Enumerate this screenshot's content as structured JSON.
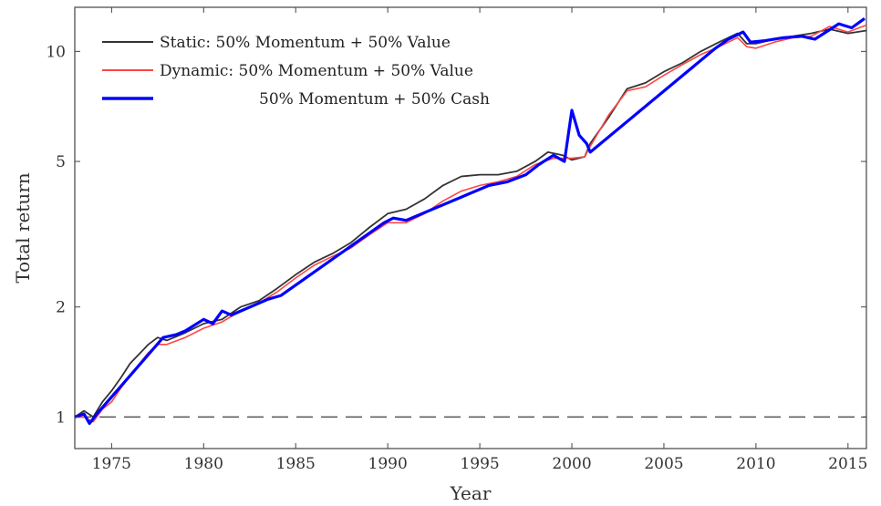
{
  "chart_data": {
    "type": "line",
    "xlabel": "Year",
    "ylabel": "Total return",
    "xlim": [
      1973,
      2016
    ],
    "ylim": [
      0.82,
      13.2
    ],
    "yscale": "log",
    "xticks": [
      1975,
      1980,
      1985,
      1990,
      1995,
      2000,
      2005,
      2010,
      2015
    ],
    "xtick_labels": [
      "1975",
      "1980",
      "1985",
      "1990",
      "1995",
      "2000",
      "2005",
      "2010",
      "2015"
    ],
    "yticks": [
      1,
      2,
      5,
      10
    ],
    "ytick_labels": [
      "1",
      "2",
      "5",
      "10"
    ],
    "grid": false,
    "legend_position": "top-left",
    "reference_line": {
      "y": 1,
      "style": "dashed",
      "color": "#555555"
    },
    "series": [
      {
        "name": "Static: 50% Momentum + 50% Value",
        "color": "#333333",
        "x": [
          1973,
          1973.5,
          1974,
          1974.5,
          1975,
          1975.5,
          1976,
          1977,
          1977.5,
          1978,
          1979,
          1980,
          1981,
          1982,
          1983,
          1984,
          1985,
          1986,
          1987,
          1988,
          1989,
          1990,
          1991,
          1992,
          1993,
          1994,
          1995,
          1996,
          1997,
          1998,
          1998.7,
          1999.5,
          2000,
          2000.7,
          2001,
          2002,
          2003,
          2004,
          2005,
          2006,
          2007,
          2008,
          2009,
          2009.5,
          2010,
          2011,
          2012,
          2013,
          2014,
          2015,
          2016
        ],
        "y": [
          1.0,
          1.04,
          1.0,
          1.1,
          1.18,
          1.28,
          1.4,
          1.58,
          1.65,
          1.62,
          1.7,
          1.8,
          1.85,
          2.0,
          2.08,
          2.25,
          2.45,
          2.65,
          2.8,
          3.0,
          3.3,
          3.6,
          3.7,
          3.95,
          4.3,
          4.55,
          4.6,
          4.6,
          4.7,
          5.0,
          5.3,
          5.2,
          5.05,
          5.15,
          5.6,
          6.6,
          7.9,
          8.2,
          8.8,
          9.3,
          10.0,
          10.6,
          11.2,
          10.5,
          10.5,
          10.8,
          11.0,
          11.2,
          11.5,
          11.2,
          11.4
        ]
      },
      {
        "name": "Dynamic: 50% Momentum + 50% Value",
        "color": "#ff4444",
        "x": [
          1973,
          1973.5,
          1974,
          1974.5,
          1975,
          1975.5,
          1976,
          1977,
          1977.5,
          1978,
          1979,
          1980,
          1981,
          1982,
          1983,
          1984,
          1985,
          1986,
          1987,
          1988,
          1989,
          1990,
          1991,
          1992,
          1993,
          1994,
          1995,
          1996,
          1997,
          1998,
          1999,
          2000,
          2000.7,
          2001,
          2002,
          2003,
          2004,
          2005,
          2006,
          2007,
          2008,
          2009,
          2009.5,
          2010,
          2011,
          2012,
          2013,
          2014,
          2015,
          2016
        ],
        "y": [
          1.0,
          1.0,
          0.97,
          1.05,
          1.1,
          1.2,
          1.3,
          1.5,
          1.58,
          1.58,
          1.65,
          1.75,
          1.82,
          1.95,
          2.05,
          2.2,
          2.4,
          2.6,
          2.75,
          2.9,
          3.15,
          3.4,
          3.4,
          3.6,
          3.9,
          4.15,
          4.3,
          4.4,
          4.55,
          4.9,
          5.1,
          5.1,
          5.15,
          5.5,
          6.7,
          7.8,
          8.0,
          8.6,
          9.2,
          9.8,
          10.3,
          10.9,
          10.3,
          10.2,
          10.6,
          10.9,
          11.0,
          11.7,
          11.3,
          11.8
        ]
      },
      {
        "name": "50% Momentum + 50% Cash",
        "color": "#0000ff",
        "x": [
          1973,
          1973.5,
          1973.8,
          1974.2,
          1977.8,
          1978.5,
          1979,
          1980,
          1980.5,
          1981,
          1981.5,
          1983.5,
          1984.2,
          1989.8,
          1990.3,
          1991,
          1995.5,
          1996.5,
          1997.5,
          1998.2,
          1999,
          1999.6,
          2000,
          2000.4,
          2000.8,
          2001,
          2007.8,
          2008.5,
          2009.3,
          2009.7,
          2010.5,
          2011.5,
          2012.5,
          2013.2,
          2014.5,
          2015.2,
          2015.9
        ],
        "y": [
          1.0,
          1.02,
          0.96,
          1.02,
          1.65,
          1.68,
          1.72,
          1.85,
          1.8,
          1.95,
          1.9,
          2.1,
          2.15,
          3.4,
          3.5,
          3.45,
          4.3,
          4.4,
          4.6,
          4.9,
          5.2,
          5.0,
          6.9,
          5.9,
          5.6,
          5.3,
          10.2,
          10.8,
          11.3,
          10.6,
          10.7,
          10.9,
          11.0,
          10.8,
          11.9,
          11.6,
          12.3
        ]
      }
    ]
  }
}
